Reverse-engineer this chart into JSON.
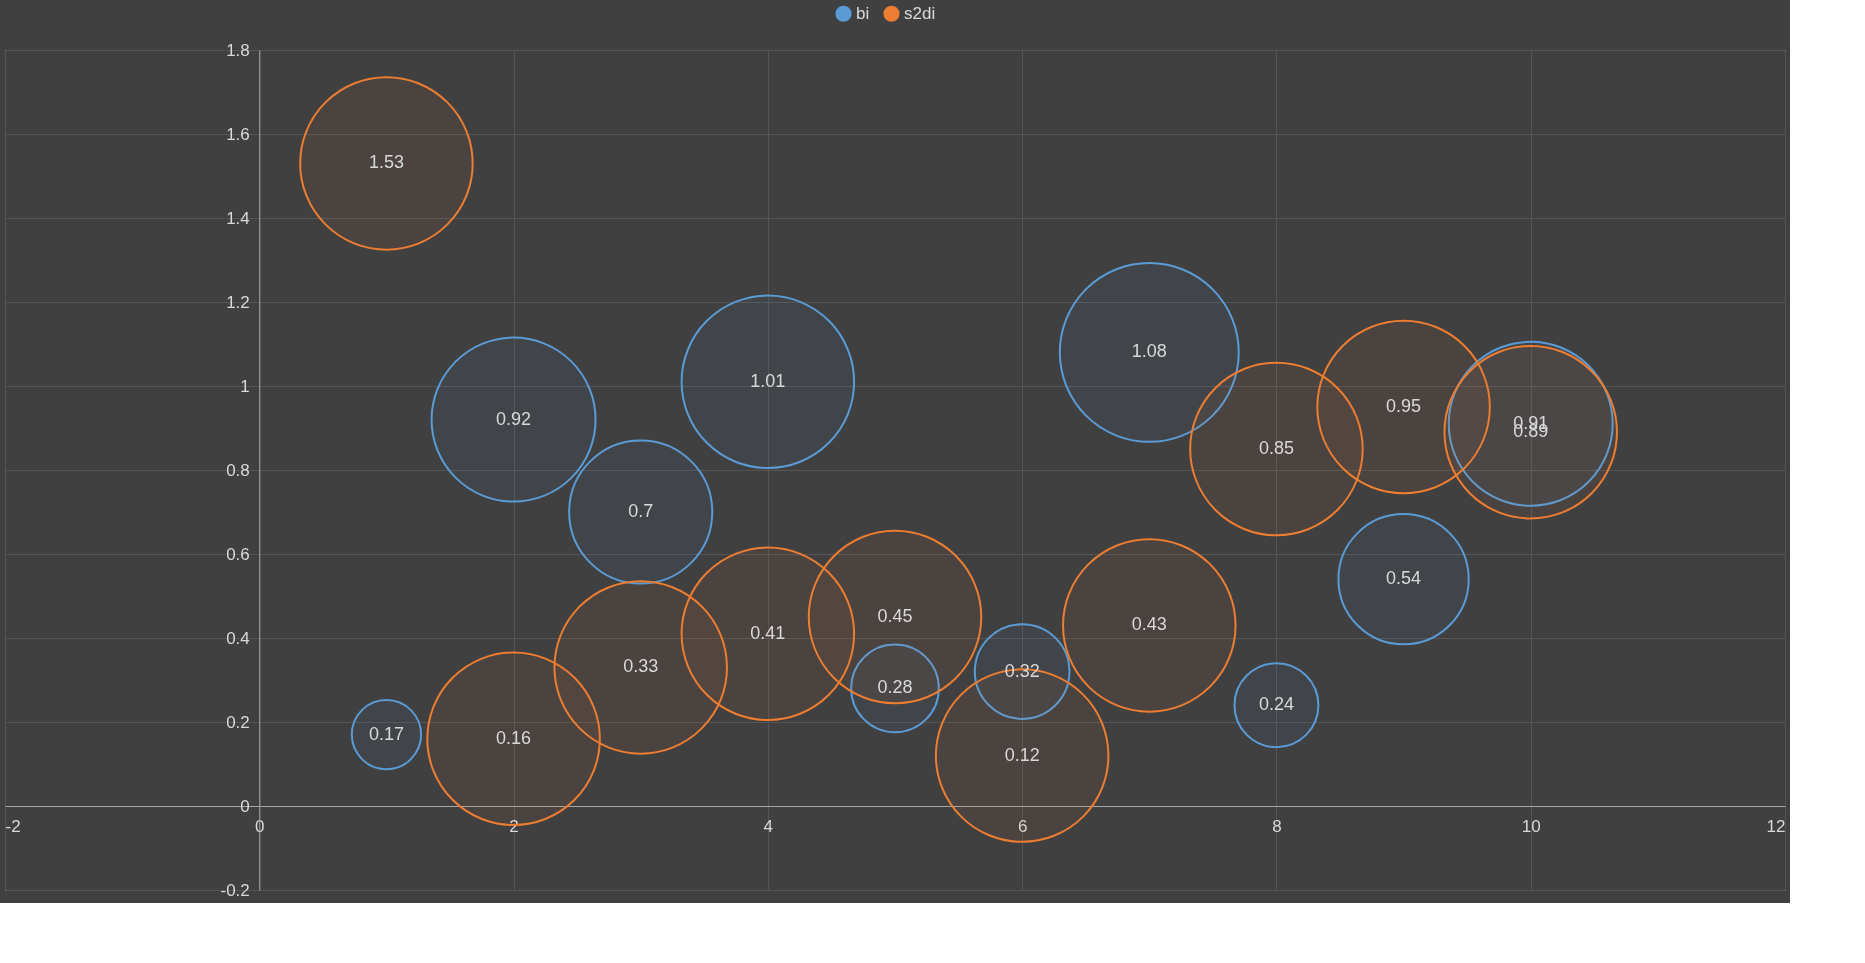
{
  "chart_data": {
    "type": "bubble",
    "x": [
      1,
      2,
      3,
      4,
      5,
      6,
      7,
      8,
      9,
      10
    ],
    "series": [
      {
        "name": "bi",
        "color": "#5b9bd5",
        "values": [
          0.17,
          0.92,
          0.7,
          1.01,
          0.28,
          0.32,
          1.08,
          0.24,
          0.54,
          0.91
        ],
        "sizes": [
          0.15,
          0.84,
          0.64,
          0.93,
          0.24,
          0.28,
          1,
          0.22,
          0.53,
          0.84
        ]
      },
      {
        "name": "s2di",
        "color": "#ed7d31",
        "values": [
          1.53,
          0.16,
          0.33,
          0.41,
          0.45,
          0.12,
          0.43,
          0.85,
          0.95,
          0.89
        ],
        "sizes": [
          0.93,
          0.93,
          0.93,
          0.93,
          0.93,
          0.93,
          0.93,
          0.93,
          0.93,
          0.93
        ]
      }
    ],
    "xlim": [
      -2,
      12
    ],
    "xticks": [
      -2,
      0,
      2,
      4,
      6,
      8,
      10,
      12
    ],
    "ylim": [
      -0.2,
      1.8
    ],
    "yticks": [
      -0.2,
      0,
      0.2,
      0.4,
      0.6,
      0.8,
      1,
      1.2,
      1.4,
      1.6,
      1.8
    ],
    "grid": true,
    "legend": "top",
    "data_labels": true
  }
}
